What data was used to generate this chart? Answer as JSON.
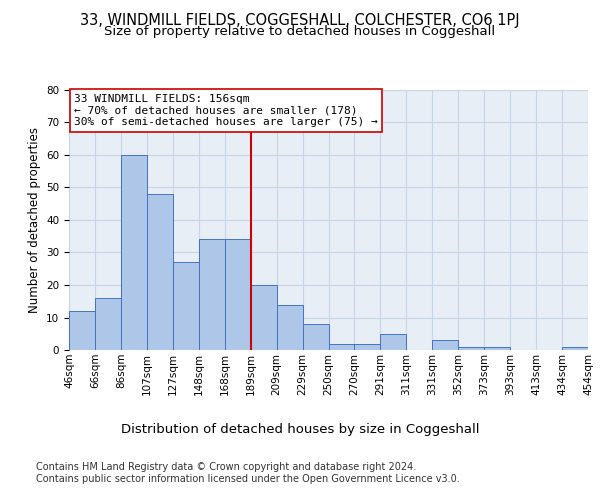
{
  "title1": "33, WINDMILL FIELDS, COGGESHALL, COLCHESTER, CO6 1PJ",
  "title2": "Size of property relative to detached houses in Coggeshall",
  "xlabel": "Distribution of detached houses by size in Coggeshall",
  "ylabel": "Number of detached properties",
  "bar_values": [
    12,
    16,
    60,
    48,
    27,
    34,
    34,
    20,
    14,
    8,
    2,
    2,
    5,
    0,
    3,
    1,
    1,
    0,
    0,
    1
  ],
  "bin_labels": [
    "46sqm",
    "66sqm",
    "86sqm",
    "107sqm",
    "127sqm",
    "148sqm",
    "168sqm",
    "189sqm",
    "209sqm",
    "229sqm",
    "250sqm",
    "270sqm",
    "291sqm",
    "311sqm",
    "331sqm",
    "352sqm",
    "373sqm",
    "393sqm",
    "413sqm",
    "434sqm",
    "454sqm"
  ],
  "bar_color": "#aec6e8",
  "bar_edge_color": "#4472c4",
  "grid_color": "#c8d4e8",
  "bg_color": "#e8eef6",
  "vline_x": 6.5,
  "vline_color": "#cc0000",
  "annotation_text": "33 WINDMILL FIELDS: 156sqm\n← 70% of detached houses are smaller (178)\n30% of semi-detached houses are larger (75) →",
  "annotation_box_color": "#ffffff",
  "annotation_box_edgecolor": "#cc0000",
  "ylim": [
    0,
    80
  ],
  "yticks": [
    0,
    10,
    20,
    30,
    40,
    50,
    60,
    70,
    80
  ],
  "footer": "Contains HM Land Registry data © Crown copyright and database right 2024.\nContains public sector information licensed under the Open Government Licence v3.0.",
  "footer_fontsize": 7.0,
  "title1_fontsize": 10.5,
  "title2_fontsize": 9.5,
  "xlabel_fontsize": 9.5,
  "ylabel_fontsize": 8.5,
  "annotation_fontsize": 8.0,
  "tick_fontsize": 7.5
}
